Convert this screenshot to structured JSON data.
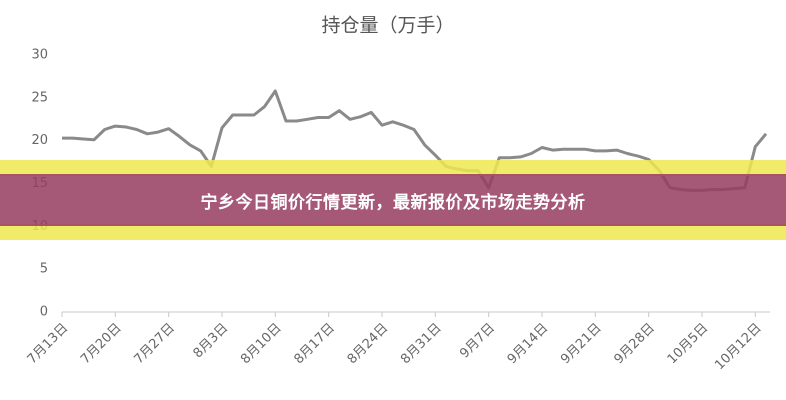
{
  "chart_data": {
    "type": "line",
    "title": "持仓量（万手）",
    "categories": [
      "7月13日",
      null,
      null,
      null,
      null,
      "7月20日",
      null,
      null,
      null,
      null,
      "7月27日",
      null,
      null,
      null,
      null,
      "8月3日",
      null,
      null,
      null,
      null,
      "8月10日",
      null,
      null,
      null,
      null,
      "8月17日",
      null,
      null,
      null,
      null,
      "8月24日",
      null,
      null,
      null,
      null,
      "8月31日",
      null,
      null,
      null,
      null,
      "9月7日",
      null,
      null,
      null,
      null,
      "9月14日",
      null,
      null,
      null,
      null,
      "9月21日",
      null,
      null,
      null,
      null,
      "9月28日",
      null,
      null,
      null,
      null,
      "10月5日",
      null,
      null,
      null,
      null,
      "10月12日",
      null
    ],
    "series": [
      {
        "color": "#8a8a8a",
        "values": [
          20.3,
          20.3,
          20.2,
          20.1,
          21.3,
          21.7,
          21.6,
          21.3,
          20.8,
          21.0,
          21.4,
          20.5,
          19.5,
          18.8,
          17.0,
          21.5,
          23.0,
          23.0,
          23.0,
          24.0,
          25.8,
          22.3,
          22.3,
          22.5,
          22.7,
          22.7,
          23.5,
          22.5,
          22.8,
          23.3,
          21.8,
          22.2,
          21.8,
          21.3,
          19.5,
          18.3,
          17.0,
          16.7,
          16.5,
          16.5,
          14.5,
          18.0,
          18.0,
          18.1,
          18.5,
          19.2,
          18.9,
          19.0,
          19.0,
          19.0,
          18.8,
          18.8,
          18.9,
          18.5,
          18.2,
          17.8,
          16.5,
          14.5,
          14.3,
          14.2,
          14.2,
          14.3,
          14.3,
          14.4,
          14.5,
          19.3,
          20.8
        ]
      }
    ],
    "ylim": [
      0,
      30
    ],
    "yticks": [
      0,
      5,
      10,
      15,
      20,
      25,
      30
    ],
    "grid": false
  },
  "banner_title": "宁乡今日铜价行情更新，最新报价及市场走势分析"
}
